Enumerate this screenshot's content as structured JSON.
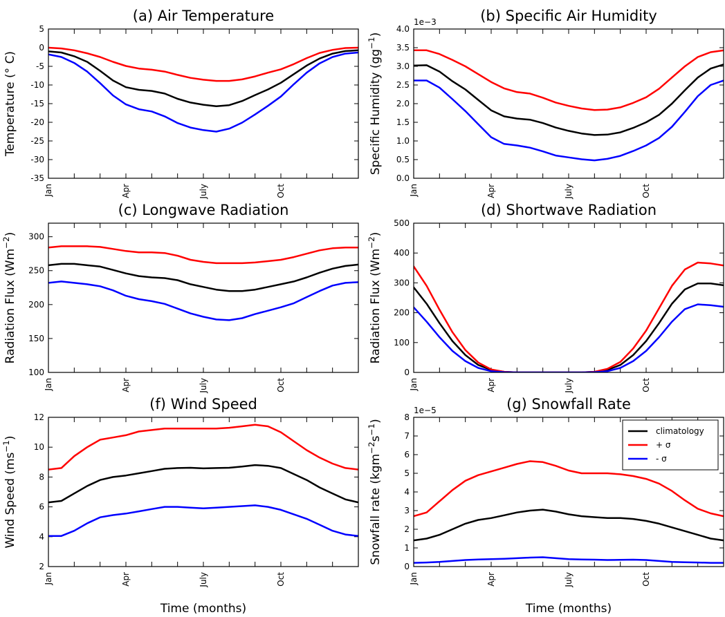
{
  "colors": {
    "mean": "#000000",
    "plus": "#ff0000",
    "minus": "#0000ff",
    "axis": "#000000"
  },
  "x_axis": {
    "tick_positions": [
      1,
      4,
      7,
      10
    ],
    "tick_labels": [
      "Jan",
      "Apr",
      "July",
      "Oct"
    ],
    "xlim": [
      1,
      13
    ],
    "minor_step": 1,
    "label": "Time (months)"
  },
  "legend": {
    "entries": [
      {
        "label": "climatology",
        "series": "climatology",
        "color": "#000000"
      },
      {
        "label": "+ σ",
        "series": "+σ",
        "color": "#ff0000"
      },
      {
        "label": "- σ",
        "series": "-σ",
        "color": "#0000ff"
      }
    ],
    "placement": "upper-right"
  },
  "chart_data": [
    {
      "id": "air-temperature",
      "type": "line",
      "title": "(a) Air Temperature",
      "ylabel": "Temperature (° C)",
      "multiplier_text": "",
      "ylim": [
        -35,
        5
      ],
      "yticks": [
        5,
        0,
        -5,
        -10,
        -15,
        -20,
        -25,
        -30,
        -35
      ],
      "xlabel": "",
      "x": [
        1,
        1.5,
        2,
        2.5,
        3,
        3.5,
        4,
        4.5,
        5,
        5.5,
        6,
        6.5,
        7,
        7.5,
        8,
        8.5,
        9,
        9.5,
        10,
        10.5,
        11,
        11.5,
        12,
        12.5,
        13
      ],
      "series": [
        {
          "name": "climatology",
          "values": [
            -1,
            -1.3,
            -2.3,
            -3.8,
            -6.2,
            -8.8,
            -10.6,
            -11.3,
            -11.6,
            -12.3,
            -13.7,
            -14.7,
            -15.3,
            -15.7,
            -15.4,
            -14.3,
            -12.7,
            -11.2,
            -9.4,
            -7.1,
            -4.8,
            -2.9,
            -1.6,
            -0.9,
            -0.7
          ]
        },
        {
          "name": "+σ",
          "values": [
            0,
            -0.2,
            -0.7,
            -1.5,
            -2.5,
            -3.8,
            -4.9,
            -5.6,
            -5.9,
            -6.4,
            -7.3,
            -8.1,
            -8.6,
            -8.9,
            -8.9,
            -8.5,
            -7.7,
            -6.7,
            -5.8,
            -4.4,
            -2.8,
            -1.4,
            -0.6,
            -0.1,
            0
          ]
        },
        {
          "name": "-σ",
          "values": [
            -1.8,
            -2.5,
            -4.1,
            -6.4,
            -9.5,
            -12.8,
            -15.2,
            -16.5,
            -17.1,
            -18.4,
            -20.2,
            -21.4,
            -22.1,
            -22.5,
            -21.7,
            -20.1,
            -17.9,
            -15.6,
            -13.1,
            -9.8,
            -6.7,
            -4.2,
            -2.5,
            -1.6,
            -1.3
          ]
        }
      ]
    },
    {
      "id": "specific-air-humidity",
      "type": "line",
      "title": "(b) Specific Air Humidity",
      "ylabel": "Specific Humidity (gg⁻¹)",
      "multiplier_text": "1e−3",
      "ylim": [
        0,
        4
      ],
      "yticks": [
        4.0,
        3.5,
        3.0,
        2.5,
        2.0,
        1.5,
        1.0,
        0.5,
        0.0
      ],
      "xlabel": "",
      "x": [
        1,
        1.5,
        2,
        2.5,
        3,
        3.5,
        4,
        4.5,
        5,
        5.5,
        6,
        6.5,
        7,
        7.5,
        8,
        8.5,
        9,
        9.5,
        10,
        10.5,
        11,
        11.5,
        12,
        12.5,
        13
      ],
      "series": [
        {
          "name": "climatology",
          "values": [
            3.02,
            3.03,
            2.86,
            2.6,
            2.38,
            2.1,
            1.82,
            1.66,
            1.6,
            1.57,
            1.48,
            1.36,
            1.27,
            1.2,
            1.16,
            1.17,
            1.23,
            1.35,
            1.5,
            1.7,
            2.0,
            2.36,
            2.7,
            2.94,
            3.05
          ]
        },
        {
          "name": "+σ",
          "values": [
            3.43,
            3.43,
            3.33,
            3.17,
            3.0,
            2.79,
            2.58,
            2.41,
            2.31,
            2.27,
            2.16,
            2.03,
            1.94,
            1.87,
            1.83,
            1.84,
            1.9,
            2.02,
            2.17,
            2.4,
            2.7,
            3.0,
            3.25,
            3.38,
            3.43
          ]
        },
        {
          "name": "-σ",
          "values": [
            2.62,
            2.62,
            2.43,
            2.12,
            1.8,
            1.45,
            1.1,
            0.92,
            0.88,
            0.82,
            0.72,
            0.61,
            0.56,
            0.51,
            0.48,
            0.52,
            0.6,
            0.73,
            0.88,
            1.08,
            1.38,
            1.78,
            2.2,
            2.5,
            2.62
          ]
        }
      ]
    },
    {
      "id": "longwave-radiation",
      "type": "line",
      "title": "(c) Longwave Radiation",
      "ylabel": "Radiation Flux (Wm⁻²)",
      "multiplier_text": "",
      "ylim": [
        100,
        320
      ],
      "yticks": [
        300,
        250,
        200,
        150,
        100
      ],
      "xlabel": "",
      "x": [
        1,
        1.5,
        2,
        2.5,
        3,
        3.5,
        4,
        4.5,
        5,
        5.5,
        6,
        6.5,
        7,
        7.5,
        8,
        8.5,
        9,
        9.5,
        10,
        10.5,
        11,
        11.5,
        12,
        12.5,
        13
      ],
      "series": [
        {
          "name": "climatology",
          "values": [
            258,
            260,
            260,
            258,
            256,
            251,
            246,
            242,
            240,
            239,
            236,
            230,
            226,
            222,
            220,
            220,
            222,
            226,
            230,
            234,
            240,
            247,
            253,
            257,
            259
          ]
        },
        {
          "name": "+σ",
          "values": [
            284,
            286,
            286,
            286,
            285,
            282,
            279,
            277,
            277,
            276,
            272,
            266,
            263,
            261,
            261,
            261,
            262,
            264,
            266,
            270,
            275,
            280,
            283,
            284,
            284
          ]
        },
        {
          "name": "-σ",
          "values": [
            232,
            234,
            232,
            230,
            227,
            221,
            213,
            208,
            205,
            201,
            194,
            187,
            182,
            178,
            177,
            180,
            186,
            191,
            196,
            202,
            211,
            220,
            228,
            232,
            233
          ]
        }
      ]
    },
    {
      "id": "shortwave-radiation",
      "type": "line",
      "title": "(d) Shortwave Radiation",
      "ylabel": "Radiation Flux (Wm⁻²)",
      "multiplier_text": "",
      "ylim": [
        0,
        500
      ],
      "yticks": [
        500,
        400,
        300,
        200,
        100,
        0
      ],
      "xlabel": "",
      "x": [
        1,
        1.5,
        2,
        2.5,
        3,
        3.5,
        4,
        4.5,
        5,
        5.5,
        6,
        6.5,
        7,
        7.5,
        8,
        8.5,
        9,
        9.5,
        10,
        10.5,
        11,
        11.5,
        12,
        12.5,
        13
      ],
      "series": [
        {
          "name": "climatology",
          "values": [
            285,
            230,
            165,
            105,
            58,
            25,
            8,
            2,
            0,
            0,
            0,
            0,
            0,
            0,
            2,
            8,
            25,
            58,
            105,
            165,
            230,
            278,
            298,
            298,
            292
          ]
        },
        {
          "name": "+σ",
          "values": [
            355,
            290,
            210,
            135,
            75,
            33,
            10,
            2,
            0,
            0,
            0,
            0,
            0,
            0,
            2,
            12,
            35,
            80,
            140,
            215,
            290,
            345,
            368,
            365,
            358
          ]
        },
        {
          "name": "-σ",
          "values": [
            218,
            170,
            118,
            72,
            38,
            15,
            4,
            1,
            0,
            0,
            0,
            0,
            0,
            0,
            1,
            4,
            15,
            38,
            72,
            118,
            170,
            212,
            228,
            225,
            220
          ]
        }
      ]
    },
    {
      "id": "wind-speed",
      "type": "line",
      "title": "(f) Wind Speed",
      "ylabel": "Wind Speed (ms⁻¹)",
      "multiplier_text": "",
      "ylim": [
        2,
        12
      ],
      "yticks": [
        12,
        10,
        8,
        6,
        4,
        2
      ],
      "xlabel": "Time (months)",
      "x": [
        1,
        1.5,
        2,
        2.5,
        3,
        3.5,
        4,
        4.5,
        5,
        5.5,
        6,
        6.5,
        7,
        7.5,
        8,
        8.5,
        9,
        9.5,
        10,
        10.5,
        11,
        11.5,
        12,
        12.5,
        13
      ],
      "series": [
        {
          "name": "climatology",
          "values": [
            6.3,
            6.4,
            6.9,
            7.4,
            7.8,
            8.0,
            8.1,
            8.25,
            8.4,
            8.55,
            8.6,
            8.62,
            8.58,
            8.6,
            8.62,
            8.7,
            8.8,
            8.75,
            8.6,
            8.2,
            7.8,
            7.3,
            6.9,
            6.5,
            6.3
          ]
        },
        {
          "name": "+σ",
          "values": [
            8.5,
            8.6,
            9.4,
            10.0,
            10.5,
            10.65,
            10.8,
            11.05,
            11.15,
            11.25,
            11.25,
            11.25,
            11.25,
            11.25,
            11.3,
            11.4,
            11.5,
            11.4,
            11.0,
            10.4,
            9.8,
            9.3,
            8.9,
            8.6,
            8.5
          ]
        },
        {
          "name": "-σ",
          "values": [
            4.05,
            4.05,
            4.4,
            4.9,
            5.3,
            5.45,
            5.55,
            5.7,
            5.85,
            6.0,
            6.0,
            5.95,
            5.9,
            5.95,
            6.0,
            6.05,
            6.1,
            6.0,
            5.8,
            5.5,
            5.2,
            4.8,
            4.4,
            4.15,
            4.05
          ]
        }
      ]
    },
    {
      "id": "snowfall-rate",
      "type": "line",
      "title": "(g) Snowfall Rate",
      "ylabel": "Snowfall rate (kgm⁻²s⁻¹)",
      "multiplier_text": "1e−5",
      "ylim": [
        0,
        8
      ],
      "yticks": [
        8,
        7,
        6,
        5,
        4,
        3,
        2,
        1,
        0
      ],
      "xlabel": "Time (months)",
      "x": [
        1,
        1.5,
        2,
        2.5,
        3,
        3.5,
        4,
        4.5,
        5,
        5.5,
        6,
        6.5,
        7,
        7.5,
        8,
        8.5,
        9,
        9.5,
        10,
        10.5,
        11,
        11.5,
        12,
        12.5,
        13
      ],
      "series": [
        {
          "name": "climatology",
          "values": [
            1.4,
            1.5,
            1.7,
            2.0,
            2.3,
            2.5,
            2.6,
            2.75,
            2.9,
            3.0,
            3.05,
            2.95,
            2.8,
            2.7,
            2.65,
            2.6,
            2.6,
            2.55,
            2.45,
            2.3,
            2.1,
            1.9,
            1.7,
            1.5,
            1.4
          ]
        },
        {
          "name": "+σ",
          "values": [
            2.7,
            2.9,
            3.5,
            4.1,
            4.6,
            4.9,
            5.1,
            5.3,
            5.5,
            5.65,
            5.6,
            5.4,
            5.15,
            5.0,
            5.0,
            5.0,
            4.95,
            4.85,
            4.7,
            4.45,
            4.05,
            3.55,
            3.1,
            2.85,
            2.7
          ]
        },
        {
          "name": "-σ",
          "values": [
            0.2,
            0.22,
            0.25,
            0.3,
            0.35,
            0.38,
            0.4,
            0.42,
            0.45,
            0.48,
            0.5,
            0.45,
            0.4,
            0.38,
            0.37,
            0.35,
            0.36,
            0.37,
            0.35,
            0.3,
            0.25,
            0.23,
            0.22,
            0.2,
            0.2
          ]
        }
      ]
    }
  ]
}
